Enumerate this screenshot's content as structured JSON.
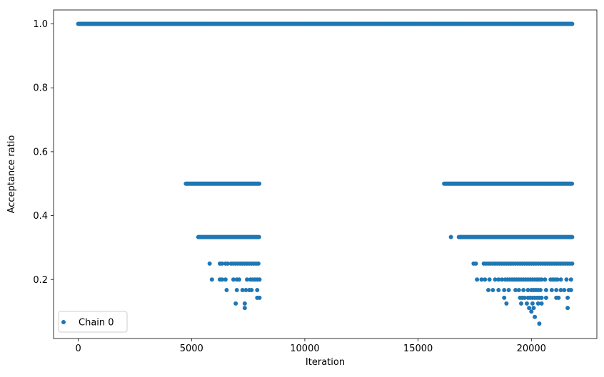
{
  "chart_data": {
    "type": "scatter",
    "xlabel": "Iteration",
    "ylabel": "Acceptance ratio",
    "xlim": [
      -1090,
      22890
    ],
    "ylim": [
      0.0155,
      1.0435
    ],
    "xticks": [
      0,
      5000,
      10000,
      15000,
      20000
    ],
    "xtick_labels": [
      "0",
      "5000",
      "10000",
      "15000",
      "20000"
    ],
    "yticks": [
      0.2,
      0.4,
      0.6,
      0.8,
      1.0
    ],
    "ytick_labels": [
      "0.2",
      "0.4",
      "0.6",
      "0.8",
      "1.0"
    ],
    "grid": false,
    "legend_position": "lower-left",
    "series": [
      {
        "name": "Chain 0",
        "color": "#1f77b4",
        "marker": "circle",
        "bands": [
          {
            "y": 1.0,
            "x_range": [
              0,
              21800
            ]
          },
          {
            "y": 0.5,
            "x_range": [
              4750,
              8000
            ]
          },
          {
            "y": 0.5,
            "x_range": [
              16150,
              21800
            ]
          },
          {
            "y": 0.333,
            "x_range": [
              5300,
              8000
            ]
          },
          {
            "y": 0.333,
            "x_range": [
              16800,
              21800
            ]
          }
        ],
        "points": [
          [
            16450,
            0.333
          ],
          [
            5800,
            0.25
          ],
          [
            6250,
            0.25
          ],
          [
            6350,
            0.25
          ],
          [
            6500,
            0.25
          ],
          [
            6600,
            0.25
          ],
          [
            6750,
            0.25
          ],
          [
            6850,
            0.25
          ],
          [
            6950,
            0.25
          ],
          [
            7050,
            0.25
          ],
          [
            7150,
            0.25
          ],
          [
            7250,
            0.25
          ],
          [
            7350,
            0.25
          ],
          [
            7450,
            0.25
          ],
          [
            7550,
            0.25
          ],
          [
            7650,
            0.25
          ],
          [
            7750,
            0.25
          ],
          [
            7850,
            0.25
          ],
          [
            7950,
            0.25
          ],
          [
            17450,
            0.25
          ],
          [
            17550,
            0.25
          ],
          [
            17900,
            0.25
          ],
          [
            18000,
            0.25
          ],
          [
            18100,
            0.25
          ],
          [
            18200,
            0.25
          ],
          [
            18300,
            0.25
          ],
          [
            18400,
            0.25
          ],
          [
            18500,
            0.25
          ],
          [
            18600,
            0.25
          ],
          [
            18700,
            0.25
          ],
          [
            18800,
            0.25
          ],
          [
            18900,
            0.25
          ],
          [
            19000,
            0.25
          ],
          [
            19100,
            0.25
          ],
          [
            19200,
            0.25
          ],
          [
            19300,
            0.25
          ],
          [
            19400,
            0.25
          ],
          [
            19500,
            0.25
          ],
          [
            19600,
            0.25
          ],
          [
            19700,
            0.25
          ],
          [
            19800,
            0.25
          ],
          [
            19900,
            0.25
          ],
          [
            20000,
            0.25
          ],
          [
            20100,
            0.25
          ],
          [
            20200,
            0.25
          ],
          [
            20300,
            0.25
          ],
          [
            20400,
            0.25
          ],
          [
            20500,
            0.25
          ],
          [
            20600,
            0.25
          ],
          [
            20700,
            0.25
          ],
          [
            20800,
            0.25
          ],
          [
            20900,
            0.25
          ],
          [
            21000,
            0.25
          ],
          [
            21100,
            0.25
          ],
          [
            21200,
            0.25
          ],
          [
            21300,
            0.25
          ],
          [
            21400,
            0.25
          ],
          [
            21500,
            0.25
          ],
          [
            21600,
            0.25
          ],
          [
            21700,
            0.25
          ],
          [
            21800,
            0.25
          ],
          [
            5900,
            0.2
          ],
          [
            6250,
            0.2
          ],
          [
            6350,
            0.2
          ],
          [
            6500,
            0.2
          ],
          [
            6850,
            0.2
          ],
          [
            7000,
            0.2
          ],
          [
            7100,
            0.2
          ],
          [
            7450,
            0.2
          ],
          [
            7600,
            0.2
          ],
          [
            7700,
            0.2
          ],
          [
            7800,
            0.2
          ],
          [
            7900,
            0.2
          ],
          [
            8000,
            0.2
          ],
          [
            17600,
            0.2
          ],
          [
            17800,
            0.2
          ],
          [
            17950,
            0.2
          ],
          [
            18150,
            0.2
          ],
          [
            18400,
            0.2
          ],
          [
            18550,
            0.2
          ],
          [
            18700,
            0.2
          ],
          [
            18850,
            0.2
          ],
          [
            18950,
            0.2
          ],
          [
            19050,
            0.2
          ],
          [
            19150,
            0.2
          ],
          [
            19250,
            0.2
          ],
          [
            19350,
            0.2
          ],
          [
            19450,
            0.2
          ],
          [
            19550,
            0.2
          ],
          [
            19650,
            0.2
          ],
          [
            19750,
            0.2
          ],
          [
            19850,
            0.2
          ],
          [
            19950,
            0.2
          ],
          [
            20050,
            0.2
          ],
          [
            20150,
            0.2
          ],
          [
            20250,
            0.2
          ],
          [
            20350,
            0.2
          ],
          [
            20450,
            0.2
          ],
          [
            20600,
            0.2
          ],
          [
            20850,
            0.2
          ],
          [
            20950,
            0.2
          ],
          [
            21050,
            0.2
          ],
          [
            21150,
            0.2
          ],
          [
            21300,
            0.2
          ],
          [
            21550,
            0.2
          ],
          [
            21750,
            0.2
          ],
          [
            6550,
            0.167
          ],
          [
            7000,
            0.167
          ],
          [
            7250,
            0.167
          ],
          [
            7400,
            0.167
          ],
          [
            7550,
            0.167
          ],
          [
            7650,
            0.167
          ],
          [
            7900,
            0.167
          ],
          [
            18100,
            0.167
          ],
          [
            18300,
            0.167
          ],
          [
            18550,
            0.167
          ],
          [
            18800,
            0.167
          ],
          [
            19000,
            0.167
          ],
          [
            19300,
            0.167
          ],
          [
            19450,
            0.167
          ],
          [
            19650,
            0.167
          ],
          [
            19850,
            0.167
          ],
          [
            20000,
            0.167
          ],
          [
            20100,
            0.167
          ],
          [
            20200,
            0.167
          ],
          [
            20300,
            0.167
          ],
          [
            20400,
            0.167
          ],
          [
            20650,
            0.167
          ],
          [
            20900,
            0.167
          ],
          [
            21100,
            0.167
          ],
          [
            21300,
            0.167
          ],
          [
            21450,
            0.167
          ],
          [
            21650,
            0.167
          ],
          [
            21750,
            0.167
          ],
          [
            7900,
            0.143
          ],
          [
            8000,
            0.143
          ],
          [
            18800,
            0.143
          ],
          [
            19500,
            0.143
          ],
          [
            19600,
            0.143
          ],
          [
            19700,
            0.143
          ],
          [
            19850,
            0.143
          ],
          [
            19950,
            0.143
          ],
          [
            20050,
            0.143
          ],
          [
            20150,
            0.143
          ],
          [
            20250,
            0.143
          ],
          [
            20350,
            0.143
          ],
          [
            20450,
            0.143
          ],
          [
            20650,
            0.143
          ],
          [
            21100,
            0.143
          ],
          [
            21200,
            0.143
          ],
          [
            21600,
            0.143
          ],
          [
            6950,
            0.125
          ],
          [
            7350,
            0.125
          ],
          [
            18900,
            0.125
          ],
          [
            19550,
            0.125
          ],
          [
            19800,
            0.125
          ],
          [
            20050,
            0.125
          ],
          [
            20300,
            0.125
          ],
          [
            20450,
            0.125
          ],
          [
            7350,
            0.111
          ],
          [
            19900,
            0.111
          ],
          [
            20100,
            0.111
          ],
          [
            21600,
            0.111
          ],
          [
            20000,
            0.1
          ],
          [
            20150,
            0.083
          ],
          [
            20350,
            0.062
          ]
        ]
      }
    ]
  }
}
